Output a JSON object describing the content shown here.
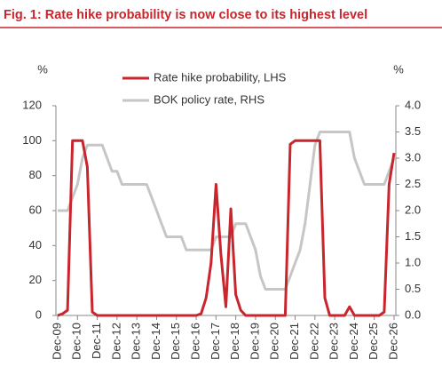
{
  "chart_data": {
    "type": "line",
    "title": "Fig. 1: Rate hike probability is now close to its highest level",
    "y_unit": "%",
    "y2_unit": "%",
    "categories": [
      "Dec-09",
      null,
      null,
      null,
      "Dec-10",
      null,
      null,
      null,
      "Dec-11",
      null,
      null,
      null,
      "Dec-12",
      null,
      null,
      null,
      "Dec-13",
      null,
      null,
      null,
      "Dec-14",
      null,
      null,
      null,
      "Dec-15",
      null,
      null,
      null,
      "Dec-16",
      null,
      null,
      null,
      "Dec-17",
      null,
      null,
      null,
      "Dec-18",
      null,
      null,
      null,
      "Dec-19",
      null,
      null,
      null,
      "Dec-20",
      null,
      null,
      null,
      "Dec-21",
      null,
      null,
      null,
      "Dec-22",
      null,
      null,
      null,
      "Dec-23",
      null,
      null,
      null,
      "Dec-24",
      null,
      null,
      null,
      "Dec-25",
      null,
      null,
      null,
      "Dec-26"
    ],
    "series": [
      {
        "name": "Rate hike probability, LHS",
        "color": "#c8252c",
        "axis": "y",
        "values": [
          0,
          1,
          3,
          100,
          100,
          100,
          85,
          2,
          0,
          0,
          0,
          0,
          0,
          0,
          0,
          0,
          0,
          0,
          0,
          0,
          0,
          0,
          0,
          0,
          0,
          0,
          0,
          0,
          0,
          1,
          10,
          30,
          75,
          35,
          5,
          61,
          12,
          3,
          0,
          0,
          0,
          0,
          0,
          0,
          0,
          0,
          0,
          98,
          100,
          100,
          100,
          100,
          100,
          100,
          10,
          0,
          0,
          0,
          0,
          5,
          0,
          0,
          0,
          0,
          0,
          0,
          2,
          75,
          93
        ]
      },
      {
        "name": "BOK policy rate, RHS",
        "color": "#c6c6c6",
        "axis": "y2",
        "values": [
          2.0,
          2.0,
          2.0,
          2.25,
          2.5,
          3.0,
          3.25,
          3.25,
          3.25,
          3.25,
          3.0,
          2.75,
          2.75,
          2.5,
          2.5,
          2.5,
          2.5,
          2.5,
          2.5,
          2.25,
          2.0,
          1.75,
          1.5,
          1.5,
          1.5,
          1.5,
          1.25,
          1.25,
          1.25,
          1.25,
          1.25,
          1.25,
          1.5,
          1.5,
          1.5,
          1.5,
          1.75,
          1.75,
          1.75,
          1.5,
          1.25,
          0.75,
          0.5,
          0.5,
          0.5,
          0.5,
          0.5,
          0.75,
          1.0,
          1.25,
          1.75,
          2.5,
          3.25,
          3.5,
          3.5,
          3.5,
          3.5,
          3.5,
          3.5,
          3.5,
          3.0,
          2.75,
          2.5,
          2.5,
          2.5,
          2.5,
          2.5,
          2.75,
          3.0
        ]
      }
    ],
    "ylim": [
      0,
      120
    ],
    "yticks": [
      0,
      20,
      40,
      60,
      80,
      100,
      120
    ],
    "y2lim": [
      0,
      4
    ],
    "y2ticks": [
      {
        "value": 0,
        "label": "0.0"
      },
      {
        "value": 0.5,
        "label": "0.5"
      },
      {
        "value": 1,
        "label": "1.0"
      },
      {
        "value": 1.5,
        "label": "1.5"
      },
      {
        "value": 2,
        "label": "2.0"
      },
      {
        "value": 2.5,
        "label": "2.5"
      },
      {
        "value": 3,
        "label": "3.0"
      },
      {
        "value": 3.5,
        "label": "3.5"
      },
      {
        "value": 4,
        "label": "4.0"
      }
    ],
    "grid": false
  }
}
